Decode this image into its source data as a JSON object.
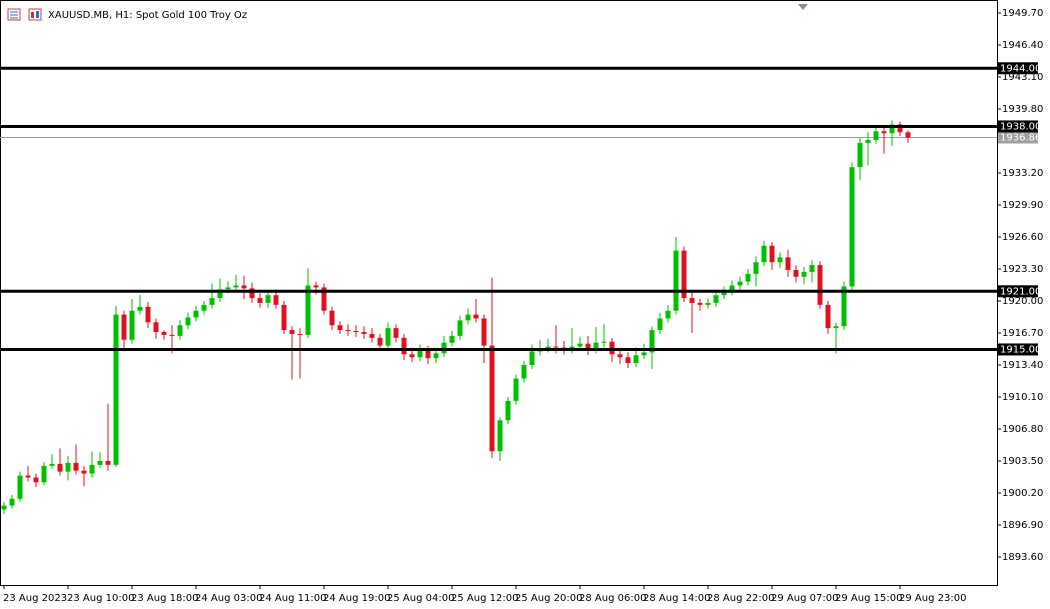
{
  "chart_data": {
    "type": "candlestick",
    "title": "XAUUSD.MB, H1:  Spot Gold 100 Troy Oz",
    "up_color": "#00c000",
    "down_color": "#e01020",
    "categories": [
      "23 Aug 2023",
      null,
      null,
      null,
      null,
      null,
      null,
      null,
      "23 Aug 10:00",
      null,
      null,
      null,
      null,
      null,
      null,
      null,
      "23 Aug 18:00",
      null,
      null,
      null,
      null,
      null,
      null,
      null,
      "24 Aug 03:00",
      null,
      null,
      null,
      null,
      null,
      null,
      null,
      "24 Aug 11:00",
      null,
      null,
      null,
      null,
      null,
      null,
      null,
      "24 Aug 19:00",
      null,
      null,
      null,
      null,
      null,
      null,
      null,
      "25 Aug 04:00",
      null,
      null,
      null,
      null,
      null,
      null,
      null,
      "25 Aug 12:00",
      null,
      null,
      null,
      null,
      null,
      null,
      null,
      "25 Aug 20:00",
      null,
      null,
      null,
      null,
      null,
      null,
      null,
      "28 Aug 06:00",
      null,
      null,
      null,
      null,
      null,
      null,
      null,
      "28 Aug 14:00",
      null,
      null,
      null,
      null,
      null,
      null,
      null,
      "28 Aug 22:00",
      null,
      null,
      null,
      null,
      null,
      null,
      null,
      "29 Aug 07:00",
      null,
      null,
      null,
      null,
      null,
      null,
      null,
      "29 Aug 15:00",
      null,
      null,
      null,
      null,
      null,
      null,
      null,
      "29 Aug 23:00",
      null
    ],
    "open": [
      1898.5,
      1898.9,
      1899.6,
      1902.0,
      1901.8,
      1901.3,
      1903.0,
      1903.2,
      1902.4,
      1903.3,
      1902.5,
      1902.2,
      1903.1,
      1903.5,
      1903.1,
      1918.6,
      1916.0,
      1919.0,
      1919.4,
      1917.8,
      1916.8,
      1916.5,
      1916.4,
      1917.5,
      1918.3,
      1919.0,
      1919.6,
      1920.3,
      1921.2,
      1921.4,
      1921.6,
      1921.3,
      1920.3,
      1919.8,
      1920.6,
      1919.6,
      1917.0,
      1916.6,
      1916.5,
      1921.6,
      1921.4,
      1919.0,
      1917.5,
      1917.0,
      1916.9,
      1916.8,
      1916.6,
      1916.2,
      1915.4,
      1917.2,
      1916.2,
      1914.5,
      1914.2,
      1915.0,
      1914.1,
      1914.6,
      1915.7,
      1916.4,
      1918.0,
      1918.6,
      1918.2,
      1915.4,
      1904.5,
      1907.7,
      1909.7,
      1912.0,
      1913.4,
      1914.8,
      1915.1,
      1915.3,
      1915.2,
      1915.0,
      1915.3,
      1915.6,
      1915.0,
      1915.7,
      1915.8,
      1914.5,
      1914.2,
      1913.6,
      1914.4,
      1914.7,
      1917.0,
      1918.2,
      1919.0,
      1925.2,
      1920.3,
      1919.8,
      1919.6,
      1919.8,
      1920.6,
      1921.0,
      1921.6,
      1922.0,
      1922.8,
      1924.0,
      1925.7,
      1924.0,
      1924.5,
      1923.2,
      1922.5,
      1923.0,
      1923.7,
      1919.6,
      1917.2,
      1917.4,
      1921.5,
      1933.8,
      1936.3,
      1936.6,
      1937.5,
      1937.3,
      1938.2,
      1937.4
    ],
    "high": [
      1899.3,
      1900.0,
      1902.4,
      1903.0,
      1902.2,
      1903.4,
      1904.2,
      1904.8,
      1904.0,
      1905.2,
      1903.0,
      1904.5,
      1904.4,
      1909.4,
      1919.5,
      1919.0,
      1920.2,
      1920.6,
      1919.9,
      1918.2,
      1917.0,
      1917.5,
      1918.0,
      1918.8,
      1919.5,
      1920.0,
      1921.8,
      1922.3,
      1922.0,
      1922.7,
      1922.6,
      1921.9,
      1920.8,
      1921.1,
      1921.2,
      1920.0,
      1917.4,
      1917.2,
      1923.4,
      1922.0,
      1921.8,
      1919.4,
      1917.9,
      1917.6,
      1917.5,
      1917.4,
      1917.2,
      1916.6,
      1917.8,
      1917.6,
      1916.6,
      1915.0,
      1915.5,
      1915.4,
      1915.1,
      1916.4,
      1916.9,
      1918.5,
      1919.2,
      1920.2,
      1918.6,
      1922.4,
      1908.0,
      1910.1,
      1912.4,
      1913.8,
      1915.5,
      1916.0,
      1916.1,
      1917.5,
      1915.9,
      1917.2,
      1916.3,
      1916.4,
      1917.3,
      1917.6,
      1916.2,
      1915.1,
      1914.7,
      1915.2,
      1915.6,
      1917.4,
      1918.8,
      1919.6,
      1926.6,
      1925.6,
      1921.0,
      1920.2,
      1920.3,
      1921.0,
      1921.5,
      1922.1,
      1922.5,
      1923.3,
      1924.6,
      1926.2,
      1926.1,
      1925.0,
      1925.3,
      1923.7,
      1923.5,
      1924.2,
      1924.1,
      1920.0,
      1917.8,
      1922.0,
      1934.3,
      1936.8,
      1937.4,
      1938.0,
      1937.9,
      1938.6,
      1938.5,
      1937.6
    ],
    "low": [
      1898.0,
      1898.6,
      1899.3,
      1901.4,
      1900.8,
      1901.0,
      1902.7,
      1902.0,
      1901.5,
      1902.1,
      1900.9,
      1901.8,
      1902.8,
      1902.5,
      1902.9,
      1914.8,
      1915.6,
      1918.6,
      1917.2,
      1916.1,
      1916.0,
      1914.6,
      1916.0,
      1917.1,
      1917.9,
      1918.6,
      1919.2,
      1919.9,
      1920.8,
      1920.9,
      1920.2,
      1919.8,
      1919.3,
      1919.3,
      1919.2,
      1916.6,
      1911.9,
      1912.0,
      1916.2,
      1920.7,
      1918.6,
      1917.0,
      1916.6,
      1916.4,
      1916.3,
      1916.1,
      1915.7,
      1914.9,
      1915.0,
      1915.7,
      1913.9,
      1913.7,
      1913.8,
      1913.5,
      1913.6,
      1914.2,
      1915.3,
      1916.0,
      1917.6,
      1917.8,
      1913.6,
      1903.8,
      1903.5,
      1907.3,
      1909.3,
      1911.6,
      1913.0,
      1914.4,
      1914.7,
      1914.6,
      1914.5,
      1914.6,
      1914.9,
      1914.4,
      1914.6,
      1915.2,
      1913.7,
      1913.5,
      1913.1,
      1913.2,
      1914.0,
      1913.0,
      1916.6,
      1917.8,
      1918.6,
      1919.9,
      1916.7,
      1919.0,
      1919.2,
      1919.4,
      1920.2,
      1920.6,
      1921.2,
      1921.6,
      1921.5,
      1923.6,
      1923.2,
      1923.4,
      1922.5,
      1921.9,
      1921.7,
      1921.9,
      1919.2,
      1916.6,
      1914.6,
      1917.0,
      1921.1,
      1932.5,
      1934.0,
      1936.2,
      1935.2,
      1936.0,
      1937.0,
      1936.3
    ],
    "close": [
      1898.9,
      1899.6,
      1902.0,
      1901.8,
      1901.3,
      1903.0,
      1903.2,
      1902.4,
      1903.3,
      1902.5,
      1902.2,
      1903.1,
      1903.5,
      1903.1,
      1918.6,
      1916.0,
      1919.0,
      1919.4,
      1917.8,
      1916.8,
      1916.5,
      1916.4,
      1917.5,
      1918.3,
      1919.0,
      1919.6,
      1920.3,
      1921.2,
      1921.4,
      1921.6,
      1921.3,
      1920.3,
      1919.8,
      1920.6,
      1919.6,
      1917.0,
      1916.6,
      1916.5,
      1921.6,
      1921.4,
      1919.0,
      1917.5,
      1917.0,
      1916.9,
      1916.8,
      1916.6,
      1916.2,
      1915.4,
      1917.2,
      1916.2,
      1914.5,
      1914.2,
      1915.0,
      1914.1,
      1914.6,
      1915.7,
      1916.4,
      1918.0,
      1918.6,
      1918.2,
      1915.4,
      1904.5,
      1907.7,
      1909.7,
      1912.0,
      1913.4,
      1914.8,
      1915.1,
      1915.3,
      1915.2,
      1915.0,
      1915.3,
      1915.6,
      1915.0,
      1915.7,
      1915.8,
      1914.5,
      1914.2,
      1913.6,
      1914.4,
      1914.7,
      1917.0,
      1918.2,
      1919.0,
      1925.2,
      1920.3,
      1919.8,
      1919.6,
      1919.8,
      1920.6,
      1921.0,
      1921.6,
      1922.0,
      1922.8,
      1924.0,
      1925.7,
      1924.0,
      1924.5,
      1923.2,
      1922.5,
      1923.0,
      1923.7,
      1919.6,
      1917.2,
      1917.4,
      1921.5,
      1933.8,
      1936.3,
      1936.6,
      1937.5,
      1937.3,
      1938.2,
      1937.4,
      1936.86
    ],
    "ylim": [
      1890.71,
      1951.04
    ],
    "yticks": [
      {
        "value": 1893.6,
        "label": "1893.60"
      },
      {
        "value": 1896.9,
        "label": "1896.90"
      },
      {
        "value": 1900.2,
        "label": "1900.20"
      },
      {
        "value": 1903.5,
        "label": "1903.50"
      },
      {
        "value": 1906.8,
        "label": "1906.80"
      },
      {
        "value": 1910.1,
        "label": "1910.10"
      },
      {
        "value": 1913.4,
        "label": "1913.40"
      },
      {
        "value": 1916.7,
        "label": "1916.70"
      },
      {
        "value": 1920.0,
        "label": "1920.00"
      },
      {
        "value": 1923.3,
        "label": "1923.30"
      },
      {
        "value": 1926.6,
        "label": "1926.60"
      },
      {
        "value": 1929.9,
        "label": "1929.90"
      },
      {
        "value": 1933.2,
        "label": "1933.20"
      },
      {
        "value": 1939.8,
        "label": "1939.80"
      },
      {
        "value": 1943.1,
        "label": "1943.10"
      },
      {
        "value": 1946.4,
        "label": "1946.40"
      },
      {
        "value": 1949.7,
        "label": "1949.70"
      }
    ],
    "levels": [
      {
        "value": 1944.0,
        "label": "1944.00"
      },
      {
        "value": 1938.0,
        "label": "1938.00"
      },
      {
        "value": 1921.0,
        "label": "1921.00"
      },
      {
        "value": 1915.0,
        "label": "1915.00"
      }
    ],
    "last_price": {
      "value": 1936.86,
      "label": "1936.86"
    }
  }
}
